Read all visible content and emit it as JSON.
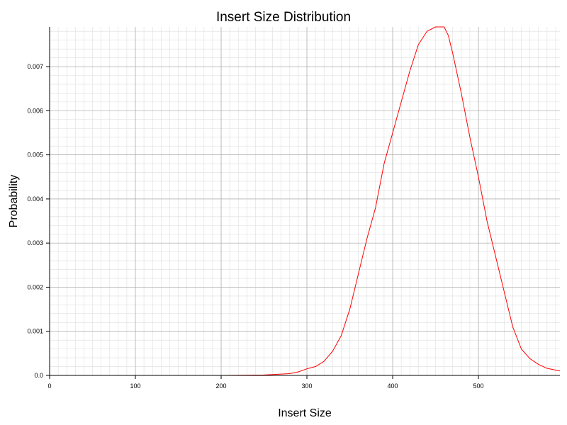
{
  "chart_data": {
    "type": "line",
    "title": "Insert Size Distribution",
    "xlabel": "Insert Size",
    "ylabel": "Probability",
    "xlim": [
      0,
      595
    ],
    "ylim": [
      0,
      0.0079
    ],
    "x_ticks": [
      0,
      100,
      200,
      300,
      400,
      500
    ],
    "x_tick_labels": [
      "0",
      "100",
      "200",
      "300",
      "400",
      "500"
    ],
    "y_ticks": [
      0,
      0.001,
      0.002,
      0.003,
      0.004,
      0.005,
      0.006,
      0.007
    ],
    "y_tick_labels": [
      "0.0",
      "0.001",
      "0.002",
      "0.003",
      "0.004",
      "0.005",
      "0.006",
      "0.007"
    ],
    "x_minor_step": 10,
    "y_minor_step": 0.0002,
    "grid": true,
    "legend": "none",
    "series_color": "#ff0000",
    "series": [
      {
        "x": [
          0,
          50,
          100,
          150,
          200,
          250,
          260,
          270,
          280,
          290,
          300,
          310,
          320,
          330,
          340,
          350,
          360,
          370,
          380,
          390,
          400,
          410,
          420,
          430,
          440,
          450,
          455,
          460,
          465,
          470,
          480,
          490,
          500,
          510,
          520,
          530,
          540,
          550,
          560,
          570,
          580,
          590,
          595
        ],
        "y": [
          0.0,
          0.0,
          0.0,
          0.0,
          0.0,
          1e-05,
          2e-05,
          3e-05,
          4e-05,
          8e-05,
          0.00015,
          0.0002,
          0.00032,
          0.00055,
          0.0009,
          0.0015,
          0.0023,
          0.0031,
          0.0038,
          0.0048,
          0.0055,
          0.0062,
          0.0069,
          0.0075,
          0.0078,
          0.0079,
          0.0079,
          0.0079,
          0.0077,
          0.0073,
          0.0064,
          0.0054,
          0.0045,
          0.0035,
          0.0027,
          0.0019,
          0.0011,
          0.0006,
          0.00038,
          0.00025,
          0.00016,
          0.00012,
          0.0001
        ]
      }
    ]
  }
}
